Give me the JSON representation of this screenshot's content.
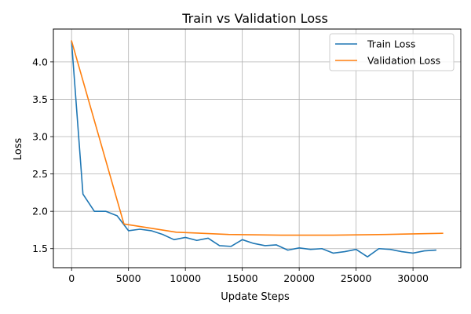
{
  "chart_data": {
    "type": "line",
    "title": "Train vs Validation Loss",
    "xlabel": "Update Steps",
    "ylabel": "Loss",
    "xlim": [
      -1600,
      34200
    ],
    "ylim": [
      1.245,
      4.44
    ],
    "xticks": [
      0,
      5000,
      10000,
      15000,
      20000,
      25000,
      30000
    ],
    "yticks": [
      1.5,
      2.0,
      2.5,
      3.0,
      3.5,
      4.0
    ],
    "xtick_labels": [
      "0",
      "5000",
      "10000",
      "15000",
      "20000",
      "25000",
      "30000"
    ],
    "ytick_labels": [
      "1.5",
      "2.0",
      "2.5",
      "3.0",
      "3.5",
      "4.0"
    ],
    "grid": true,
    "legend_position": "top-right",
    "series": [
      {
        "name": "Train Loss",
        "color": "#1f77b4",
        "x": [
          0,
          1000,
          2000,
          3000,
          4000,
          5000,
          6000,
          7000,
          8000,
          9000,
          10000,
          11000,
          12000,
          13000,
          14000,
          15000,
          16000,
          17000,
          18000,
          19000,
          20000,
          21000,
          22000,
          23000,
          24000,
          25000,
          26000,
          27000,
          28000,
          29000,
          30000,
          31000,
          32000
        ],
        "y": [
          4.27,
          2.23,
          2.0,
          2.0,
          1.94,
          1.74,
          1.76,
          1.74,
          1.69,
          1.62,
          1.65,
          1.61,
          1.64,
          1.54,
          1.53,
          1.62,
          1.57,
          1.54,
          1.55,
          1.48,
          1.51,
          1.49,
          1.5,
          1.44,
          1.46,
          1.49,
          1.39,
          1.5,
          1.49,
          1.46,
          1.44,
          1.47,
          1.48
        ]
      },
      {
        "name": "Validation Loss",
        "color": "#ff7f0e",
        "x": [
          0,
          4600,
          9200,
          13800,
          18400,
          23000,
          27600,
          32600
        ],
        "y": [
          4.28,
          1.83,
          1.72,
          1.69,
          1.68,
          1.68,
          1.69,
          1.705
        ]
      }
    ]
  }
}
